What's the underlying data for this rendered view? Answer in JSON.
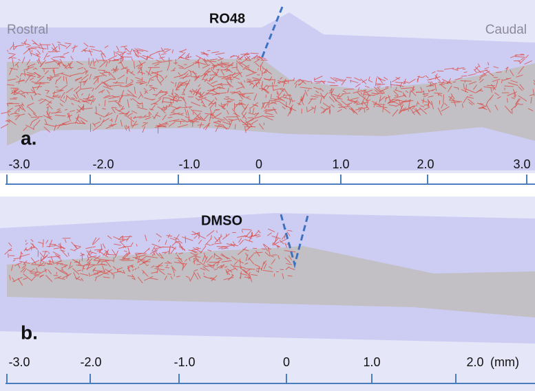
{
  "panels": [
    {
      "label": "a.",
      "title": "RO48",
      "rostral": "Rostral",
      "caudal": "Caudal",
      "ticks": [
        "-3.0",
        "-2.0",
        "-1.0",
        "0",
        "1.0",
        "2.0",
        "3.0"
      ]
    },
    {
      "label": "b.",
      "title": "DMSO",
      "ticks": [
        "-3.0",
        "-2.0",
        "-1.0",
        "0",
        "1.0",
        "2.0"
      ],
      "unit": "(mm)"
    }
  ]
}
